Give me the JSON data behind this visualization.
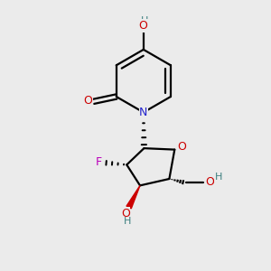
{
  "bg_color": "#ebebeb",
  "bond_color": "#000000",
  "N_color": "#2222cc",
  "O_color": "#cc0000",
  "F_color": "#bb00bb",
  "H_color": "#3d8080",
  "linewidth": 1.6,
  "figsize": [
    3.0,
    3.0
  ],
  "dpi": 100,
  "xlim": [
    0,
    10
  ],
  "ylim": [
    0,
    10
  ]
}
